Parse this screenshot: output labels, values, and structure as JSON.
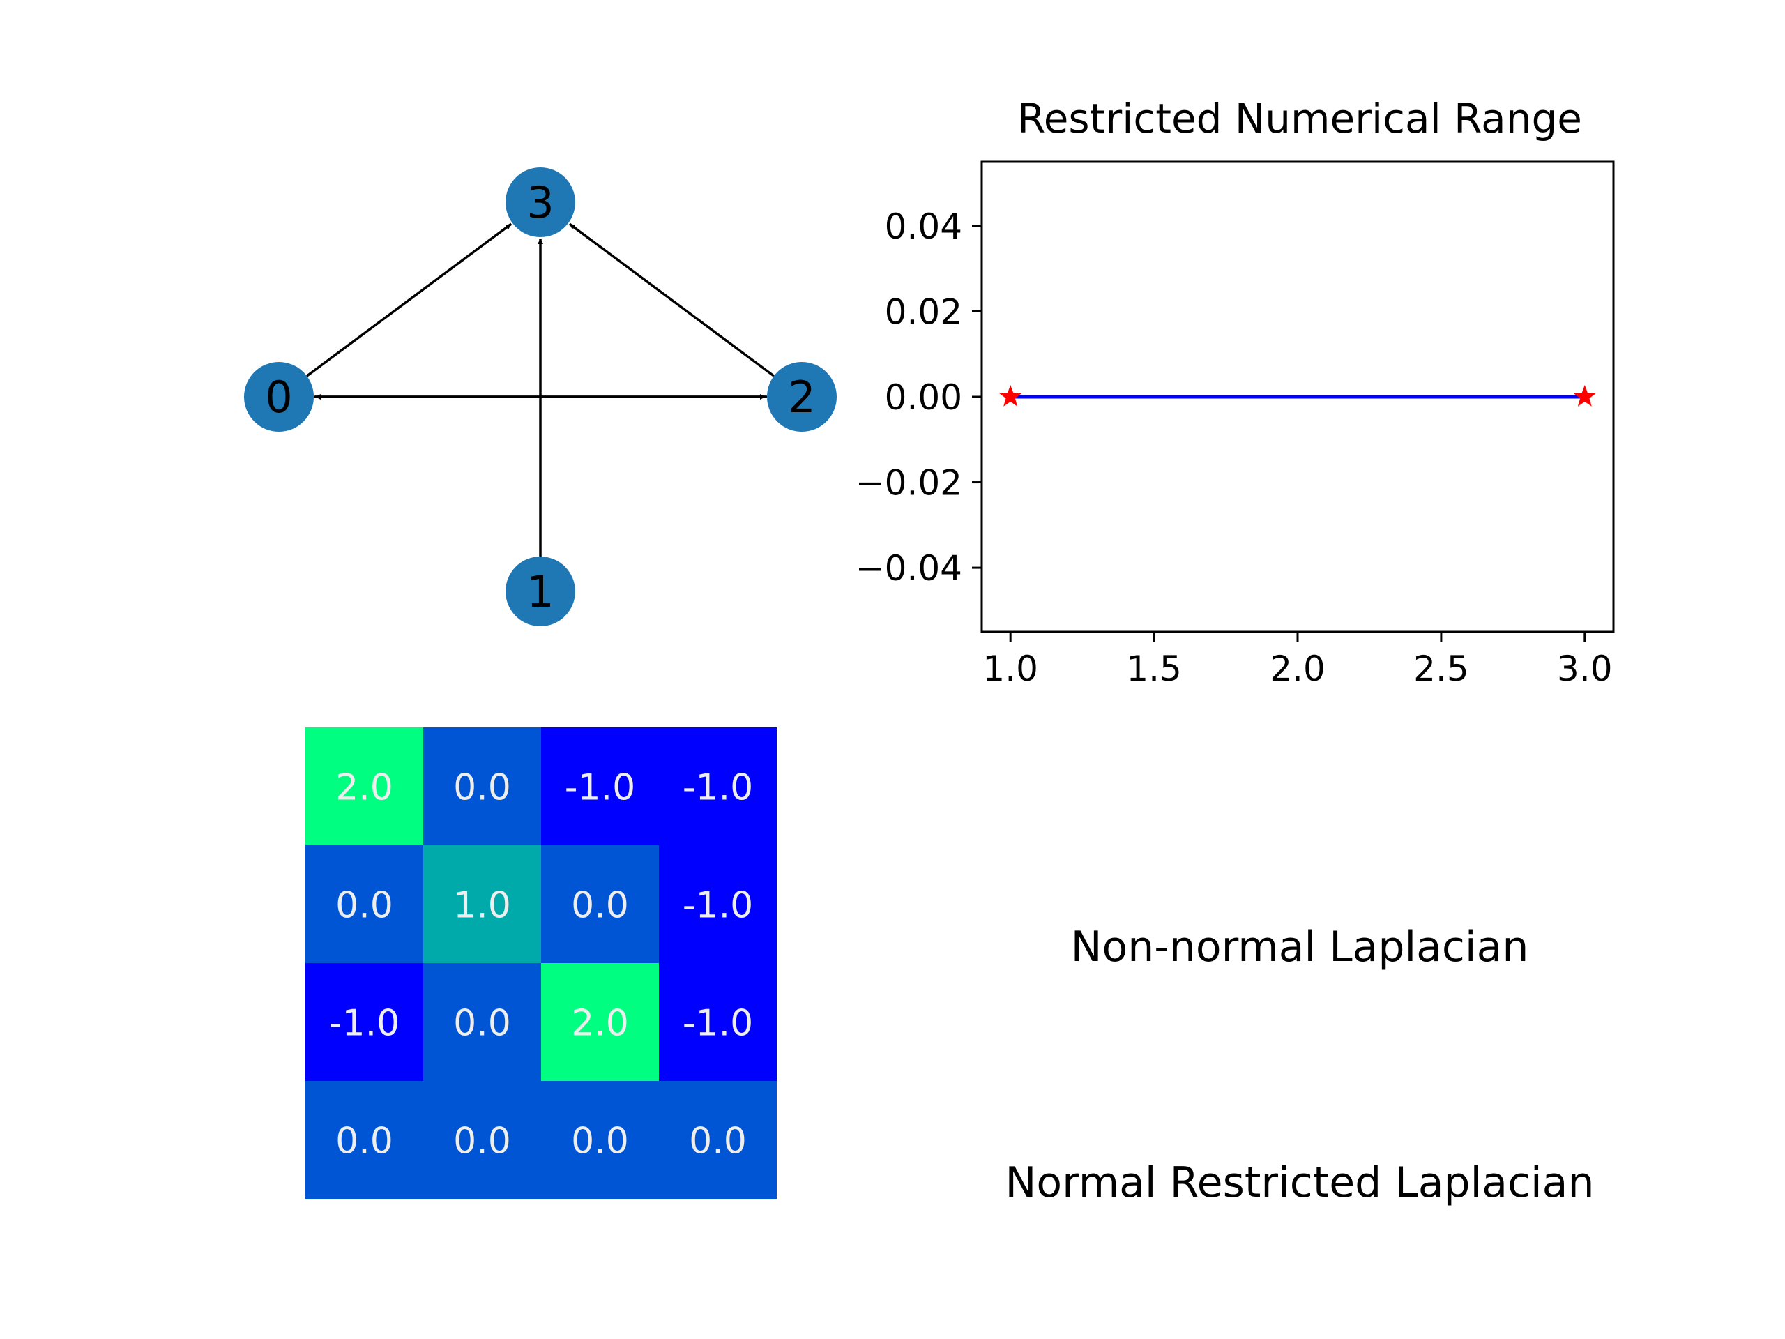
{
  "chart_data": [
    {
      "type": "graph",
      "nodes": [
        "0",
        "1",
        "2",
        "3"
      ],
      "edges": [
        {
          "from": "0",
          "to": "3"
        },
        {
          "from": "1",
          "to": "3"
        },
        {
          "from": "2",
          "to": "3"
        },
        {
          "from": "0",
          "to": "2"
        },
        {
          "from": "2",
          "to": "0"
        }
      ],
      "node_color": "#1f77b4"
    },
    {
      "type": "line",
      "title": "Restricted Numerical Range",
      "xlabel": "",
      "ylabel": "",
      "xlim": [
        0.9,
        3.1
      ],
      "ylim": [
        -0.055,
        0.055
      ],
      "xticks": [
        1.0,
        1.5,
        2.0,
        2.5,
        3.0
      ],
      "xtick_labels": [
        "1.0",
        "1.5",
        "2.0",
        "2.5",
        "3.0"
      ],
      "yticks": [
        0.04,
        0.02,
        0.0,
        -0.02,
        -0.04
      ],
      "ytick_labels": [
        "0.04",
        "0.02",
        "0.00",
        "−0.02",
        "−0.04"
      ],
      "grid": false,
      "segment": {
        "x": [
          1.0,
          3.0
        ],
        "y": [
          0.0,
          0.0
        ],
        "color": "#0000ff"
      },
      "markers": {
        "x": [
          1.0,
          3.0
        ],
        "y": [
          0.0,
          0.0
        ],
        "marker": "star",
        "color": "#ff0000"
      }
    },
    {
      "type": "heatmap",
      "colormap": "winter",
      "values": [
        [
          2.0,
          0.0,
          -1.0,
          -1.0
        ],
        [
          0.0,
          1.0,
          0.0,
          -1.0
        ],
        [
          -1.0,
          0.0,
          2.0,
          -1.0
        ],
        [
          0.0,
          0.0,
          0.0,
          0.0
        ]
      ],
      "labels": [
        [
          "2.0",
          "0.0",
          "-1.0",
          "-1.0"
        ],
        [
          "0.0",
          "1.0",
          "0.0",
          "-1.0"
        ],
        [
          "-1.0",
          "0.0",
          "2.0",
          "-1.0"
        ],
        [
          "0.0",
          "0.0",
          "0.0",
          "0.0"
        ]
      ],
      "vmin": -1.0,
      "vmax": 2.0
    }
  ],
  "text_panel": {
    "line1": "Non-normal Laplacian",
    "line2": "Normal Restricted Laplacian"
  }
}
